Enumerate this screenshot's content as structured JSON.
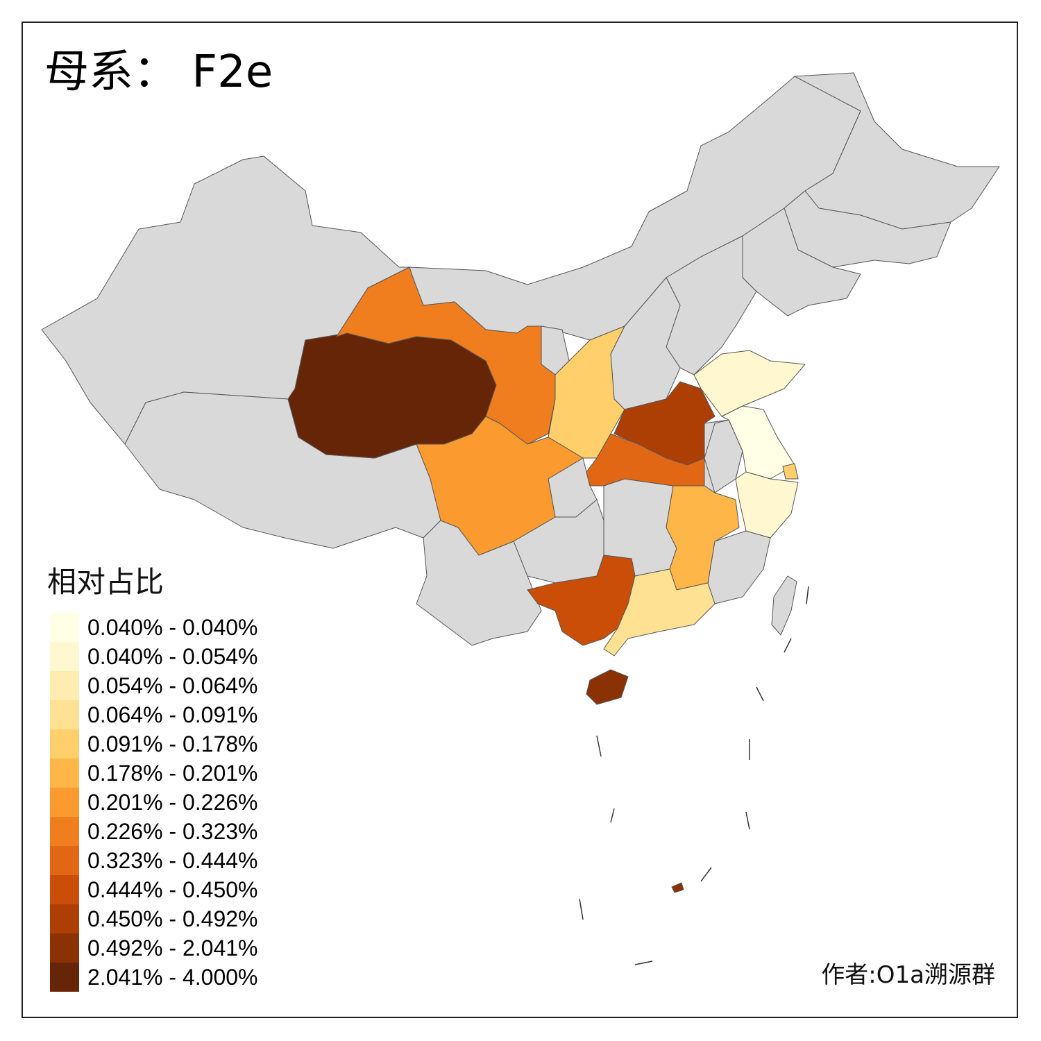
{
  "map": {
    "title": "母系： F2e",
    "legend": {
      "title": "相对占比",
      "classes": [
        {
          "label": "0.040% - 0.040%",
          "color": "#FFFFE5"
        },
        {
          "label": "0.040% - 0.054%",
          "color": "#FFF7CF"
        },
        {
          "label": "0.054% - 0.064%",
          "color": "#FEEDB0"
        },
        {
          "label": "0.064% - 0.091%",
          "color": "#FEE192"
        },
        {
          "label": "0.091% - 0.178%",
          "color": "#FECF6B"
        },
        {
          "label": "0.178% - 0.201%",
          "color": "#FEB649"
        },
        {
          "label": "0.201% - 0.226%",
          "color": "#FB9A2E"
        },
        {
          "label": "0.226% - 0.323%",
          "color": "#F07E1F"
        },
        {
          "label": "0.323% - 0.444%",
          "color": "#E26714"
        },
        {
          "label": "0.444% - 0.450%",
          "color": "#CA4E07"
        },
        {
          "label": "0.450% - 0.492%",
          "color": "#AD3F04"
        },
        {
          "label": "0.492% - 2.041%",
          "color": "#8B3205"
        },
        {
          "label": "2.041% - 4.000%",
          "color": "#662506"
        }
      ]
    },
    "no_data_color": "#D9D9D9",
    "credit": "作者:O1a溯源群"
  }
}
